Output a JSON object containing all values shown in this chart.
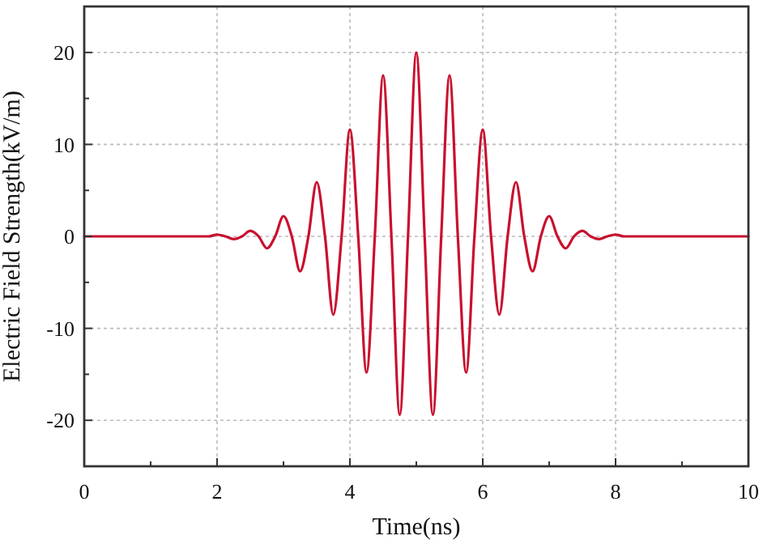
{
  "chart_data": {
    "type": "line",
    "xlabel": "Time(ns)",
    "ylabel": "Electric Field Strength(kV/m)",
    "xlim": [
      0,
      10
    ],
    "ylim": [
      -25,
      25
    ],
    "xticks": [
      0,
      {
        "value": 1,
        "label": null
      },
      2,
      {
        "value": 3,
        "label": null
      },
      4,
      {
        "value": 5,
        "label": null
      },
      6,
      {
        "value": 7,
        "label": null
      },
      8,
      {
        "value": 9,
        "label": null
      },
      10
    ],
    "yticks": [
      {
        "value": -25,
        "label": null
      },
      -20,
      {
        "value": -15,
        "label": null
      },
      -10,
      {
        "value": -5,
        "label": null
      },
      0,
      {
        "value": 5,
        "label": null
      },
      10,
      {
        "value": 15,
        "label": null
      },
      20,
      {
        "value": 25,
        "label": null
      }
    ],
    "grid": true,
    "marker": "none",
    "line_style": "solid",
    "x": [
      0,
      1.5,
      1.875,
      2,
      2.125,
      2.25,
      2.375,
      2.5,
      2.625,
      2.75,
      2.875,
      3,
      3.125,
      3.25,
      3.375,
      3.5,
      3.625,
      3.75,
      3.875,
      4,
      4.125,
      4.25,
      4.375,
      4.5,
      4.625,
      4.75,
      4.875,
      5,
      5.125,
      5.25,
      5.375,
      5.5,
      5.625,
      5.75,
      5.875,
      6,
      6.125,
      6.25,
      6.375,
      6.5,
      6.625,
      6.75,
      6.875,
      7,
      7.125,
      7.25,
      7.375,
      7.5,
      7.625,
      7.75,
      7.875,
      8,
      8.125,
      8.5,
      10
    ],
    "series": [
      {
        "color": "#c8102e",
        "values": [
          0,
          0,
          0,
          0.2,
          0,
          -0.3,
          0,
          0.6,
          0,
          -1.3,
          0,
          2.2,
          0,
          -3.8,
          0,
          5.9,
          0,
          -8.5,
          0,
          11.6,
          0,
          -14.8,
          0,
          17.5,
          0,
          -19.4,
          0,
          20,
          0,
          -19.4,
          0,
          17.5,
          0,
          -14.8,
          0,
          11.6,
          0,
          -8.5,
          0,
          5.9,
          0,
          -3.8,
          0,
          2.2,
          0,
          -1.3,
          0,
          0.6,
          0,
          -0.3,
          0,
          0.2,
          0,
          0,
          0
        ]
      }
    ]
  }
}
